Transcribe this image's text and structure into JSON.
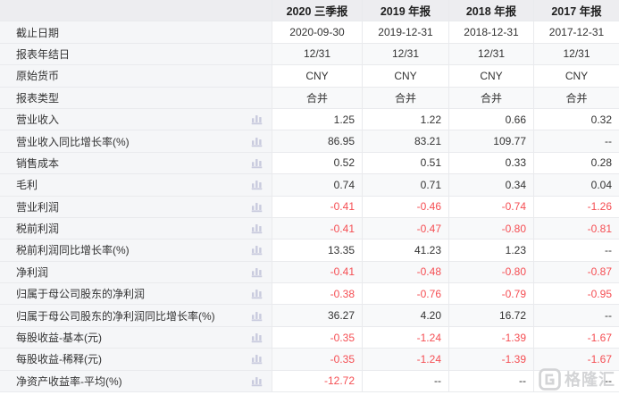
{
  "table": {
    "columns": [
      "2020 三季报",
      "2019 年报",
      "2018 年报",
      "2017 年报"
    ],
    "rows": [
      {
        "label": "截止日期",
        "icon": false,
        "align": "center",
        "values": [
          "2020-09-30",
          "2019-12-31",
          "2018-12-31",
          "2017-12-31"
        ]
      },
      {
        "label": "报表年结日",
        "icon": false,
        "align": "center",
        "values": [
          "12/31",
          "12/31",
          "12/31",
          "12/31"
        ]
      },
      {
        "label": "原始货币",
        "icon": false,
        "align": "center",
        "values": [
          "CNY",
          "CNY",
          "CNY",
          "CNY"
        ]
      },
      {
        "label": "报表类型",
        "icon": false,
        "align": "center",
        "values": [
          "合并",
          "合并",
          "合并",
          "合并"
        ]
      },
      {
        "label": "营业收入",
        "icon": true,
        "align": "right",
        "values": [
          "1.25",
          "1.22",
          "0.66",
          "0.32"
        ]
      },
      {
        "label": "营业收入同比增长率(%)",
        "icon": true,
        "align": "right",
        "values": [
          "86.95",
          "83.21",
          "109.77",
          "--"
        ]
      },
      {
        "label": "销售成本",
        "icon": true,
        "align": "right",
        "values": [
          "0.52",
          "0.51",
          "0.33",
          "0.28"
        ]
      },
      {
        "label": "毛利",
        "icon": true,
        "align": "right",
        "values": [
          "0.74",
          "0.71",
          "0.34",
          "0.04"
        ]
      },
      {
        "label": "营业利润",
        "icon": true,
        "align": "right",
        "values": [
          "-0.41",
          "-0.46",
          "-0.74",
          "-1.26"
        ]
      },
      {
        "label": "税前利润",
        "icon": true,
        "align": "right",
        "values": [
          "-0.41",
          "-0.47",
          "-0.80",
          "-0.81"
        ]
      },
      {
        "label": "税前利润同比增长率(%)",
        "icon": true,
        "align": "right",
        "values": [
          "13.35",
          "41.23",
          "1.23",
          "--"
        ]
      },
      {
        "label": "净利润",
        "icon": true,
        "align": "right",
        "values": [
          "-0.41",
          "-0.48",
          "-0.80",
          "-0.87"
        ]
      },
      {
        "label": "归属于母公司股东的净利润",
        "icon": true,
        "align": "right",
        "values": [
          "-0.38",
          "-0.76",
          "-0.79",
          "-0.95"
        ]
      },
      {
        "label": "归属于母公司股东的净利润同比增长率(%)",
        "icon": true,
        "align": "right",
        "values": [
          "36.27",
          "4.20",
          "16.72",
          "--"
        ]
      },
      {
        "label": "每股收益-基本(元)",
        "icon": true,
        "align": "right",
        "values": [
          "-0.35",
          "-1.24",
          "-1.39",
          "-1.67"
        ]
      },
      {
        "label": "每股收益-稀释(元)",
        "icon": true,
        "align": "right",
        "values": [
          "-0.35",
          "-1.24",
          "-1.39",
          "-1.67"
        ]
      },
      {
        "label": "净资产收益率-平均(%)",
        "icon": true,
        "align": "right",
        "values": [
          "-12.72",
          "--",
          "--",
          "--"
        ]
      }
    ]
  },
  "watermark": {
    "text": "格隆汇"
  },
  "icons": {
    "bar-chart-icon": "ılı",
    "gelonghui-logo-icon": "G"
  },
  "colors": {
    "header_bg": "#ededf0",
    "label_bg": "#f5f6f8",
    "alt_row_bg": "#f8f9fa",
    "border": "#e9eaed",
    "text": "#333333",
    "negative_red": "#f54e53",
    "chart_icon": "#c9cbde",
    "watermark": "#d3d4d6"
  }
}
